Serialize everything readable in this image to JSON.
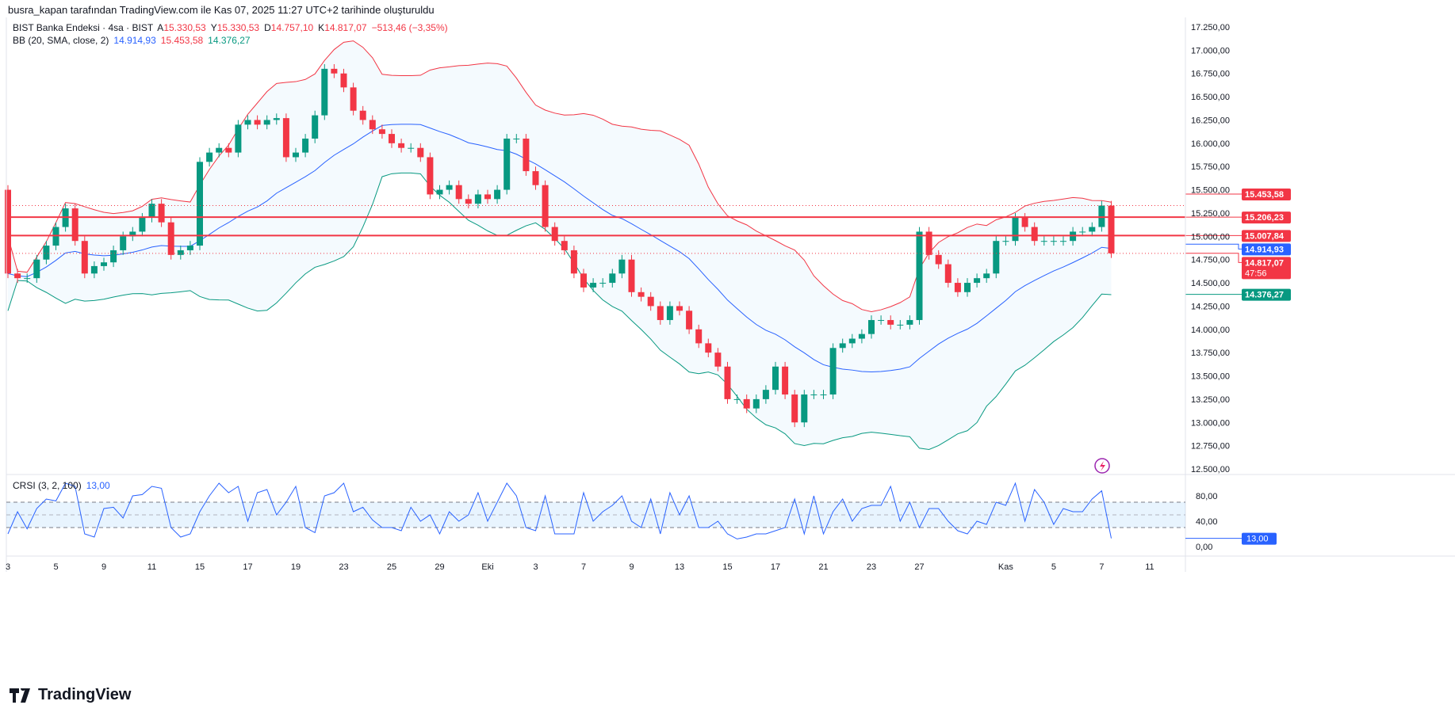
{
  "credit": "busra_kapan tarafından TradingView.com ile Kas 07, 2025 11:27 UTC+2 tarihinde oluşturuldu",
  "legend": {
    "symbol": "BIST Banka Endeksi · 4sa · BIST",
    "o_label": "A",
    "o": "15.330,53",
    "h_label": "Y",
    "h": "15.330,53",
    "l_label": "D",
    "l": "14.757,10",
    "c_label": "K",
    "c": "14.817,07",
    "change": "−513,46 (−3,35%)",
    "bb_title": "BB (20, SMA, close, 2)",
    "bb_mid": "14.914,93",
    "bb_up": "15.453,58",
    "bb_low": "14.376,27",
    "crsi_title": "CRSI (3, 2, 100)",
    "crsi_val": "13,00"
  },
  "brand": "TradingView",
  "colors": {
    "up": "#089981",
    "down": "#f23645",
    "bb_mid": "#2962ff",
    "bb_up": "#f23645",
    "bb_low": "#089981",
    "crsi": "#2962ff"
  },
  "chart_data": {
    "type": "candlestick",
    "ylim": [
      12500,
      17250
    ],
    "yticks": [
      "17.250,00",
      "17.000,00",
      "16.750,00",
      "16.500,00",
      "16.250,00",
      "16.000,00",
      "15.750,00",
      "15.500,00",
      "15.250,00",
      "15.000,00",
      "14.750,00",
      "14.500,00",
      "14.250,00",
      "14.000,00",
      "13.750,00",
      "13.500,00",
      "13.250,00",
      "13.000,00",
      "12.750,00",
      "12.500,00"
    ],
    "first_open": 15500,
    "closes": [
      14600,
      14550,
      14550,
      14750,
      14900,
      15100,
      15300,
      14950,
      14600,
      14680,
      14720,
      14850,
      15000,
      15050,
      15200,
      15350,
      15150,
      14800,
      14850,
      14900,
      15800,
      15900,
      15950,
      15900,
      16200,
      16250,
      16200,
      16250,
      16270,
      15850,
      15900,
      16050,
      16300,
      16800,
      16750,
      16600,
      16350,
      16250,
      16150,
      16100,
      16000,
      15950,
      15950,
      15850,
      15450,
      15500,
      15550,
      15400,
      15350,
      15450,
      15400,
      15500,
      16050,
      16050,
      15700,
      15550,
      15100,
      14950,
      14850,
      14600,
      14450,
      14500,
      14500,
      14600,
      14750,
      14400,
      14350,
      14250,
      14100,
      14250,
      14200,
      14000,
      13850,
      13750,
      13600,
      13250,
      13250,
      13150,
      13250,
      13350,
      13600,
      13300,
      13000,
      13300,
      13300,
      13300,
      13800,
      13850,
      13900,
      13950,
      14100,
      14100,
      14050,
      14050,
      14100,
      15050,
      14800,
      14700,
      14500,
      14400,
      14500,
      14550,
      14600,
      14950,
      14950,
      15200,
      15100,
      14950,
      14950,
      14950,
      14950,
      15050,
      15050,
      15100,
      15330,
      14817
    ],
    "xticks": [
      {
        "label": "3",
        "bar": 0
      },
      {
        "label": "5",
        "bar": 5
      },
      {
        "label": "9",
        "bar": 10
      },
      {
        "label": "11",
        "bar": 15
      },
      {
        "label": "15",
        "bar": 20
      },
      {
        "label": "17",
        "bar": 25
      },
      {
        "label": "19",
        "bar": 30
      },
      {
        "label": "23",
        "bar": 35
      },
      {
        "label": "25",
        "bar": 40
      },
      {
        "label": "29",
        "bar": 45
      },
      {
        "label": "Eki",
        "bar": 50
      },
      {
        "label": "3",
        "bar": 55
      },
      {
        "label": "7",
        "bar": 60
      },
      {
        "label": "9",
        "bar": 65
      },
      {
        "label": "13",
        "bar": 70
      },
      {
        "label": "15",
        "bar": 75
      },
      {
        "label": "17",
        "bar": 80
      },
      {
        "label": "21",
        "bar": 85
      },
      {
        "label": "23",
        "bar": 90
      },
      {
        "label": "27",
        "bar": 95
      },
      {
        "label": "Kas",
        "bar": 104
      },
      {
        "label": "5",
        "bar": 109
      },
      {
        "label": "7",
        "bar": 114
      },
      {
        "label": "11",
        "bar": 119
      }
    ],
    "hlines": [
      {
        "price": 15206.23,
        "style": "solid"
      },
      {
        "price": 15007.84,
        "style": "solid"
      }
    ],
    "price_labels": [
      {
        "text": "15.453,58",
        "price": 15453.58,
        "color": "#f23645"
      },
      {
        "text": "15.206,23",
        "price": 15206.23,
        "color": "#f23645"
      },
      {
        "text": "15.007,84",
        "price": 15007.84,
        "color": "#f23645"
      },
      {
        "text": "14.914,93",
        "price": 14914.93,
        "color": "#2962ff"
      },
      {
        "text": "14.817,07",
        "sub": "47:56",
        "price": 14817.07,
        "color": "#f23645"
      },
      {
        "text": "14.376,27",
        "price": 14376.27,
        "color": "#089981"
      }
    ],
    "crsi": {
      "ylim": [
        -5,
        100
      ],
      "yticks": [
        "80,00",
        "40,00",
        "0,00"
      ],
      "bands": [
        70,
        30
      ],
      "values": [
        20,
        55,
        28,
        60,
        75,
        72,
        100,
        95,
        20,
        15,
        60,
        62,
        45,
        80,
        82,
        95,
        92,
        30,
        15,
        20,
        55,
        80,
        100,
        85,
        95,
        40,
        85,
        90,
        50,
        70,
        95,
        30,
        22,
        80,
        85,
        100,
        55,
        62,
        42,
        30,
        30,
        25,
        62,
        40,
        50,
        20,
        55,
        40,
        50,
        85,
        40,
        70,
        100,
        80,
        30,
        25,
        80,
        20,
        20,
        20,
        85,
        40,
        55,
        65,
        80,
        40,
        30,
        75,
        20,
        85,
        50,
        80,
        30,
        30,
        40,
        20,
        12,
        15,
        20,
        20,
        25,
        30,
        75,
        20,
        80,
        20,
        55,
        75,
        40,
        60,
        65,
        65,
        95,
        40,
        70,
        30,
        60,
        60,
        40,
        25,
        20,
        40,
        35,
        70,
        65,
        100,
        40,
        90,
        70,
        35,
        60,
        55,
        55,
        75,
        88,
        13
      ]
    }
  }
}
